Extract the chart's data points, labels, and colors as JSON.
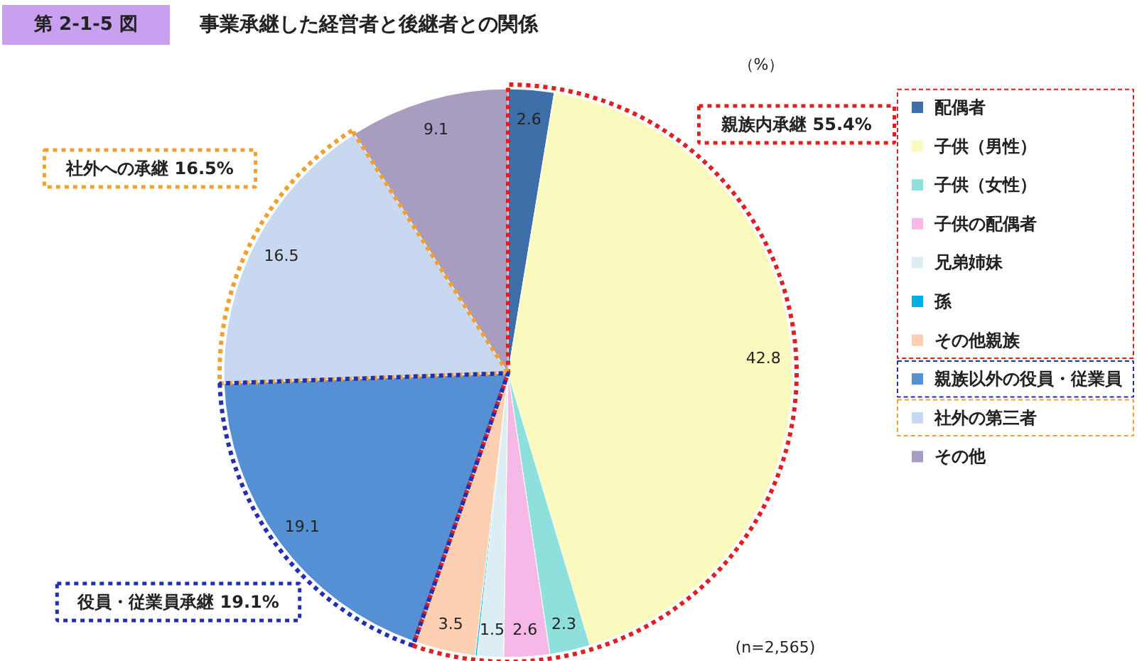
{
  "chart_data": {
    "type": "pie",
    "subtitle": "第 2-1-5 図",
    "title": "事業承継した経営者と後継者との関係",
    "categories": [
      "配偶者",
      "子供（男性）",
      "子供（女性）",
      "子供の配偶者",
      "兄弟姉妹",
      "孫",
      "その他親族",
      "親族以外の役員・従業員",
      "社外の第三者",
      "その他"
    ],
    "values": [
      2.6,
      42.8,
      2.3,
      2.6,
      1.5,
      0.1,
      3.5,
      19.1,
      16.5,
      9.1
    ],
    "value_labels": [
      "2.6",
      "42.8",
      "2.3",
      "2.6",
      "1.5",
      null,
      "3.5",
      "19.1",
      "16.5",
      "9.1"
    ],
    "colors": [
      "#3f6fa8",
      "#fafabe",
      "#8ee0dc",
      "#f6b8e6",
      "#dceef4",
      "#00b0e0",
      "#fcd0b0",
      "#5590d4",
      "#c8d8f0",
      "#a89cc0"
    ],
    "legend": "right",
    "annotations": [
      "親族内承継 55.4%",
      "社外への承継 16.5%",
      "役員・従業員承継 19.1%",
      "（%）",
      "(n=2,565)"
    ]
  }
}
